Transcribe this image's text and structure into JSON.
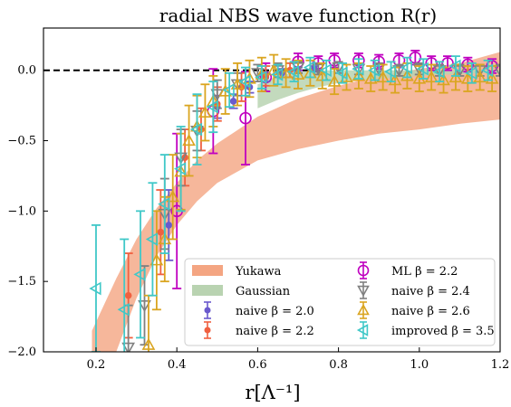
{
  "chart_data": {
    "type": "scatter",
    "title": "radial NBS wave function R(r)",
    "xlabel": "r[Λ⁻¹]",
    "ylabel": "",
    "xlim": [
      0.07,
      1.2
    ],
    "ylim": [
      -2.0,
      0.3
    ],
    "xticks": [
      0.2,
      0.4,
      0.6,
      0.8,
      1.0,
      1.2
    ],
    "yticks": [
      0.0,
      -0.5,
      -1.0,
      -1.5,
      -2.0
    ],
    "xtick_labels": [
      "0.2",
      "0.4",
      "0.6",
      "0.8",
      "1.0",
      "1.2"
    ],
    "ytick_labels": [
      "0.0",
      "−0.5",
      "−1.0",
      "−1.5",
      "−2.0"
    ],
    "reference_line": {
      "y": 0.0,
      "style": "dashed",
      "color": "#000000"
    },
    "legend_position": "lower-right",
    "legend_columns": 2,
    "bands": [
      {
        "name": "Yukawa",
        "color": "#f4a582",
        "x": [
          0.19,
          0.25,
          0.3,
          0.35,
          0.4,
          0.45,
          0.5,
          0.6,
          0.7,
          0.8,
          0.9,
          1.0,
          1.1,
          1.2
        ],
        "upper": [
          -1.85,
          -1.48,
          -1.2,
          -0.98,
          -0.8,
          -0.64,
          -0.52,
          -0.33,
          -0.2,
          -0.11,
          -0.04,
          0.01,
          0.05,
          0.13
        ],
        "lower": [
          -2.0,
          -2.0,
          -1.62,
          -1.32,
          -1.1,
          -0.93,
          -0.8,
          -0.64,
          -0.56,
          -0.5,
          -0.45,
          -0.42,
          -0.38,
          -0.35
        ]
      },
      {
        "name": "Gaussian",
        "color": "#b9d3b1",
        "x": [
          0.6,
          0.65,
          0.7,
          0.75,
          0.8,
          0.85,
          0.9,
          0.95,
          1.0,
          1.05,
          1.1,
          1.15,
          1.2
        ],
        "upper": [
          -0.1,
          -0.04,
          -0.01,
          0.0,
          0.0,
          0.0,
          0.0,
          0.0,
          0.0,
          0.0,
          0.0,
          0.0,
          0.0
        ],
        "lower": [
          -0.27,
          -0.21,
          -0.16,
          -0.12,
          -0.09,
          -0.07,
          -0.06,
          -0.05,
          -0.04,
          -0.03,
          -0.03,
          -0.02,
          -0.02
        ]
      }
    ],
    "series": [
      {
        "name": "ML β = 2.2",
        "color": "#c000c0",
        "marker": "circle",
        "points": [
          {
            "x": 0.4,
            "y": -1.0,
            "err": 0.55
          },
          {
            "x": 0.49,
            "y": -0.29,
            "err": 0.3
          },
          {
            "x": 0.57,
            "y": -0.34,
            "err": 0.33
          },
          {
            "x": 0.62,
            "y": -0.05,
            "err": 0.1
          },
          {
            "x": 0.7,
            "y": 0.06,
            "err": 0.06
          },
          {
            "x": 0.75,
            "y": 0.05,
            "err": 0.05
          },
          {
            "x": 0.79,
            "y": 0.07,
            "err": 0.05
          },
          {
            "x": 0.85,
            "y": 0.07,
            "err": 0.05
          },
          {
            "x": 0.9,
            "y": 0.06,
            "err": 0.05
          },
          {
            "x": 0.95,
            "y": 0.07,
            "err": 0.05
          },
          {
            "x": 0.99,
            "y": 0.09,
            "err": 0.05
          },
          {
            "x": 1.03,
            "y": 0.05,
            "err": 0.05
          },
          {
            "x": 1.07,
            "y": 0.05,
            "err": 0.05
          },
          {
            "x": 1.12,
            "y": 0.04,
            "err": 0.05
          },
          {
            "x": 1.18,
            "y": 0.03,
            "err": 0.05
          }
        ]
      },
      {
        "name": "naive β = 2.0",
        "color": "#6a5acd",
        "marker": "dot",
        "points": [
          {
            "x": 0.38,
            "y": -1.1,
            "err": 0.25
          },
          {
            "x": 0.5,
            "y": -0.26,
            "err": 0.08
          },
          {
            "x": 0.54,
            "y": -0.22,
            "err": 0.05
          },
          {
            "x": 0.58,
            "y": -0.12,
            "err": 0.04
          },
          {
            "x": 0.62,
            "y": -0.05,
            "err": 0.03
          },
          {
            "x": 0.66,
            "y": -0.02,
            "err": 0.03
          },
          {
            "x": 0.7,
            "y": 0.0,
            "err": 0.02
          },
          {
            "x": 0.74,
            "y": 0.01,
            "err": 0.02
          }
        ]
      },
      {
        "name": "naive β = 2.2",
        "color": "#f06040",
        "marker": "dot",
        "points": [
          {
            "x": 0.28,
            "y": -1.6,
            "err": 0.3
          },
          {
            "x": 0.36,
            "y": -1.15,
            "err": 0.3
          },
          {
            "x": 0.42,
            "y": -0.62,
            "err": 0.2
          },
          {
            "x": 0.46,
            "y": -0.42,
            "err": 0.15
          },
          {
            "x": 0.5,
            "y": -0.24,
            "err": 0.12
          },
          {
            "x": 0.56,
            "y": -0.12,
            "err": 0.1
          },
          {
            "x": 0.62,
            "y": -0.04,
            "err": 0.07
          },
          {
            "x": 0.68,
            "y": 0.0,
            "err": 0.05
          }
        ]
      },
      {
        "name": "naive β = 2.4",
        "color": "#808080",
        "marker": "triangle-down",
        "points": [
          {
            "x": 0.28,
            "y": -1.97,
            "err": 0.3
          },
          {
            "x": 0.32,
            "y": -1.67,
            "err": 0.28
          },
          {
            "x": 0.37,
            "y": -1.02,
            "err": 0.25
          },
          {
            "x": 0.41,
            "y": -0.62,
            "err": 0.2
          },
          {
            "x": 0.45,
            "y": -0.43,
            "err": 0.14
          },
          {
            "x": 0.5,
            "y": -0.17,
            "err": 0.1
          },
          {
            "x": 0.55,
            "y": -0.1,
            "err": 0.08
          },
          {
            "x": 0.6,
            "y": -0.02,
            "err": 0.06
          },
          {
            "x": 0.65,
            "y": 0.0,
            "err": 0.05
          },
          {
            "x": 0.7,
            "y": 0.02,
            "err": 0.04
          },
          {
            "x": 0.75,
            "y": 0.01,
            "err": 0.04
          },
          {
            "x": 0.8,
            "y": 0.02,
            "err": 0.04
          },
          {
            "x": 0.85,
            "y": 0.01,
            "err": 0.04
          },
          {
            "x": 0.9,
            "y": 0.01,
            "err": 0.04
          },
          {
            "x": 0.95,
            "y": 0.0,
            "err": 0.04
          },
          {
            "x": 1.0,
            "y": 0.01,
            "err": 0.04
          },
          {
            "x": 1.05,
            "y": 0.0,
            "err": 0.04
          },
          {
            "x": 1.1,
            "y": 0.0,
            "err": 0.04
          },
          {
            "x": 1.15,
            "y": 0.0,
            "err": 0.04
          },
          {
            "x": 1.2,
            "y": 0.0,
            "err": 0.04
          }
        ]
      },
      {
        "name": "naive β = 2.6",
        "color": "#daa520",
        "marker": "triangle-up",
        "points": [
          {
            "x": 0.33,
            "y": -1.95,
            "err": 0.35
          },
          {
            "x": 0.35,
            "y": -1.35,
            "err": 0.35
          },
          {
            "x": 0.37,
            "y": -1.2,
            "err": 0.3
          },
          {
            "x": 0.39,
            "y": -0.9,
            "err": 0.3
          },
          {
            "x": 0.41,
            "y": -0.72,
            "err": 0.27
          },
          {
            "x": 0.43,
            "y": -0.5,
            "err": 0.25
          },
          {
            "x": 0.45,
            "y": -0.4,
            "err": 0.22
          },
          {
            "x": 0.47,
            "y": -0.3,
            "err": 0.2
          },
          {
            "x": 0.49,
            "y": -0.22,
            "err": 0.18
          },
          {
            "x": 0.52,
            "y": -0.15,
            "err": 0.16
          },
          {
            "x": 0.55,
            "y": -0.1,
            "err": 0.15
          },
          {
            "x": 0.58,
            "y": -0.06,
            "err": 0.13
          },
          {
            "x": 0.61,
            "y": -0.03,
            "err": 0.12
          },
          {
            "x": 0.64,
            "y": 0.0,
            "err": 0.11
          },
          {
            "x": 0.67,
            "y": -0.02,
            "err": 0.1
          },
          {
            "x": 0.7,
            "y": -0.03,
            "err": 0.1
          },
          {
            "x": 0.73,
            "y": -0.02,
            "err": 0.09
          },
          {
            "x": 0.76,
            "y": -0.04,
            "err": 0.09
          },
          {
            "x": 0.79,
            "y": -0.08,
            "err": 0.09
          },
          {
            "x": 0.82,
            "y": -0.05,
            "err": 0.09
          },
          {
            "x": 0.85,
            "y": -0.04,
            "err": 0.09
          },
          {
            "x": 0.88,
            "y": -0.06,
            "err": 0.09
          },
          {
            "x": 0.91,
            "y": -0.05,
            "err": 0.09
          },
          {
            "x": 0.94,
            "y": -0.07,
            "err": 0.09
          },
          {
            "x": 0.97,
            "y": -0.04,
            "err": 0.09
          },
          {
            "x": 1.0,
            "y": -0.06,
            "err": 0.09
          },
          {
            "x": 1.03,
            "y": -0.05,
            "err": 0.09
          },
          {
            "x": 1.06,
            "y": -0.07,
            "err": 0.09
          },
          {
            "x": 1.09,
            "y": -0.05,
            "err": 0.09
          },
          {
            "x": 1.12,
            "y": -0.06,
            "err": 0.09
          },
          {
            "x": 1.15,
            "y": -0.05,
            "err": 0.09
          },
          {
            "x": 1.18,
            "y": -0.06,
            "err": 0.09
          }
        ]
      },
      {
        "name": "improved β = 3.5",
        "color": "#40c8c8",
        "marker": "triangle-left",
        "points": [
          {
            "x": 0.2,
            "y": -1.55,
            "err": 0.45
          },
          {
            "x": 0.27,
            "y": -1.7,
            "err": 0.5
          },
          {
            "x": 0.31,
            "y": -1.45,
            "err": 0.45
          },
          {
            "x": 0.34,
            "y": -1.2,
            "err": 0.4
          },
          {
            "x": 0.37,
            "y": -0.95,
            "err": 0.35
          },
          {
            "x": 0.41,
            "y": -0.7,
            "err": 0.3
          },
          {
            "x": 0.45,
            "y": -0.42,
            "err": 0.25
          },
          {
            "x": 0.49,
            "y": -0.26,
            "err": 0.18
          },
          {
            "x": 0.53,
            "y": -0.14,
            "err": 0.12
          },
          {
            "x": 0.57,
            "y": -0.08,
            "err": 0.1
          },
          {
            "x": 0.61,
            "y": -0.05,
            "err": 0.08
          },
          {
            "x": 0.65,
            "y": -0.03,
            "err": 0.07
          },
          {
            "x": 0.69,
            "y": -0.01,
            "err": 0.07
          },
          {
            "x": 0.73,
            "y": 0.02,
            "err": 0.07
          },
          {
            "x": 0.77,
            "y": 0.0,
            "err": 0.07
          },
          {
            "x": 0.81,
            "y": -0.02,
            "err": 0.07
          },
          {
            "x": 0.85,
            "y": 0.01,
            "err": 0.07
          },
          {
            "x": 0.89,
            "y": 0.0,
            "err": 0.07
          },
          {
            "x": 0.93,
            "y": -0.01,
            "err": 0.07
          },
          {
            "x": 0.97,
            "y": 0.02,
            "err": 0.07
          },
          {
            "x": 1.01,
            "y": 0.01,
            "err": 0.07
          },
          {
            "x": 1.05,
            "y": -0.01,
            "err": 0.07
          },
          {
            "x": 1.09,
            "y": 0.03,
            "err": 0.07
          },
          {
            "x": 1.13,
            "y": -0.02,
            "err": 0.07
          },
          {
            "x": 1.17,
            "y": 0.0,
            "err": 0.07
          }
        ]
      }
    ],
    "legend": [
      {
        "label": "Yukawa",
        "ref": "band:Yukawa"
      },
      {
        "label": "ML β = 2.2",
        "ref": "series:ML β = 2.2"
      },
      {
        "label": "Gaussian",
        "ref": "band:Gaussian"
      },
      {
        "label": "naive β = 2.4",
        "ref": "series:naive β = 2.4"
      },
      {
        "label": "naive β = 2.0",
        "ref": "series:naive β = 2.0"
      },
      {
        "label": "naive β = 2.6",
        "ref": "series:naive β = 2.6"
      },
      {
        "label": "naive β = 2.2",
        "ref": "series:naive β = 2.2"
      },
      {
        "label": "improved β = 3.5",
        "ref": "series:improved β = 3.5"
      }
    ]
  }
}
